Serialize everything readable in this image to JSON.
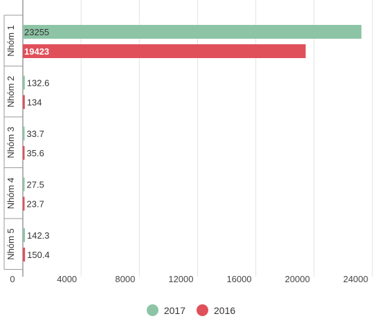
{
  "chart_data": {
    "type": "bar",
    "orientation": "horizontal",
    "categories": [
      "Nhóm 1",
      "Nhóm 2",
      "Nhóm 3",
      "Nhóm 4",
      "Nhóm 5"
    ],
    "series": [
      {
        "name": "2017",
        "color": "#8dc4a5",
        "values": [
          23255,
          132.6,
          33.7,
          27.5,
          142.3
        ],
        "labels": [
          "23255",
          "132.6",
          "33.7",
          "27.5",
          "142.3"
        ]
      },
      {
        "name": "2016",
        "color": "#e0505a",
        "values": [
          19423,
          134,
          35.6,
          23.7,
          150.4
        ],
        "labels": [
          "19423",
          "134",
          "35.6",
          "23.7",
          "150.4"
        ]
      }
    ],
    "xlim": [
      0,
      24000
    ],
    "x_ticks": [
      0,
      4000,
      8000,
      12000,
      16000,
      20000,
      24000
    ],
    "x_tick_labels": [
      "0",
      "4000",
      "8000",
      "12000",
      "16000",
      "20000",
      "24000"
    ],
    "grid": true,
    "legend_position": "bottom"
  }
}
